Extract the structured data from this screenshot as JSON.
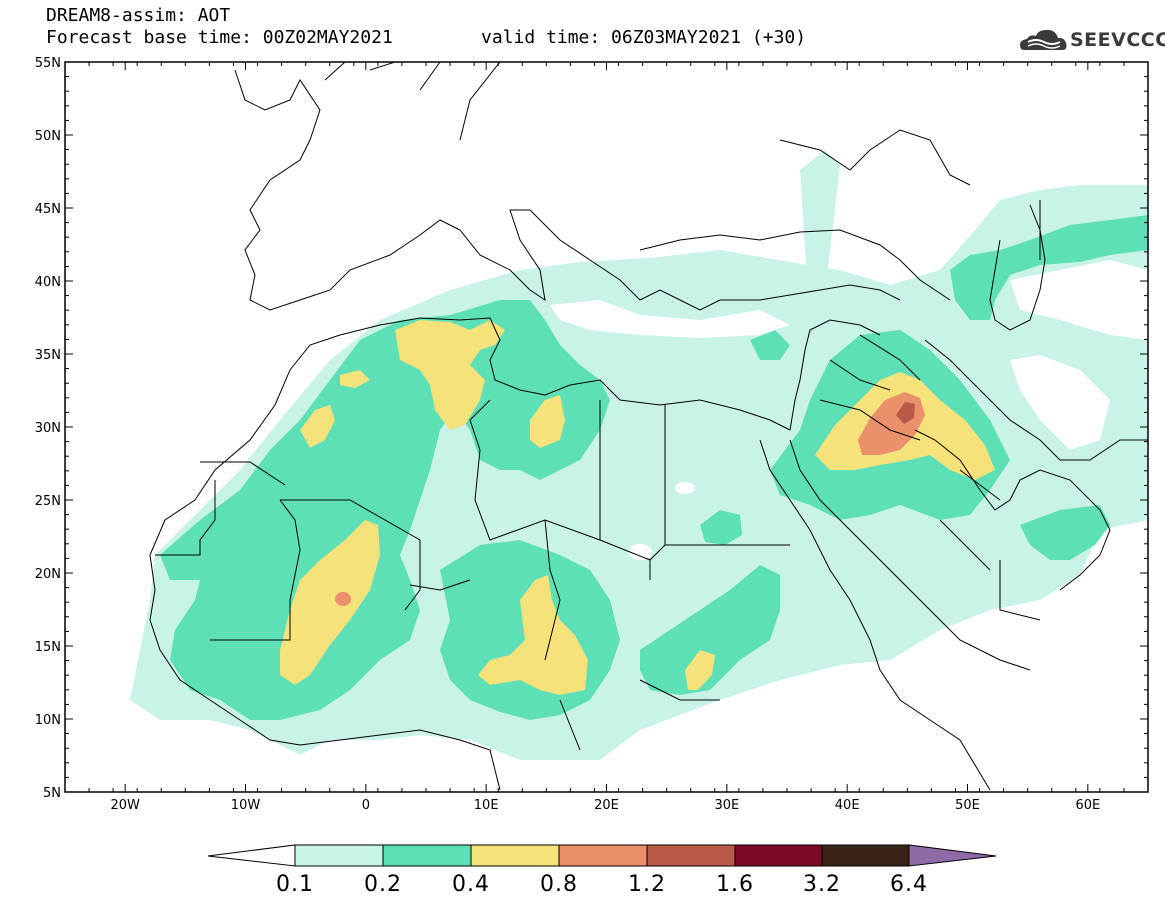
{
  "header": {
    "title": "DREAM8-assim: AOT",
    "base_time": "Forecast base time: 00Z02MAY2021",
    "valid_time": "valid time: 06Z03MAY2021 (+30)"
  },
  "logo": {
    "icon": "cloud-icon",
    "text": "SEEVCCC"
  },
  "axes": {
    "lat_labels": [
      "55N",
      "50N",
      "45N",
      "40N",
      "35N",
      "30N",
      "25N",
      "20N",
      "15N",
      "10N",
      "5N"
    ],
    "lon_labels": [
      "20W",
      "10W",
      "0",
      "10E",
      "20E",
      "30E",
      "40E",
      "50E",
      "60E"
    ],
    "lat_range": [
      5,
      55
    ],
    "lon_range": [
      -25,
      65
    ]
  },
  "colorbar": {
    "labels": [
      "0.1",
      "0.2",
      "0.4",
      "0.8",
      "1.2",
      "1.6",
      "3.2",
      "6.4"
    ],
    "colors": [
      "#ffffff",
      "#c9f3e9",
      "#5ddfb7",
      "#f6e27a",
      "#ea906a",
      "#b85a47",
      "#7b0a26",
      "#3a2418",
      "#8e6aa6"
    ]
  },
  "colors": {
    "c1": "#c9f3e9",
    "c2": "#5ddfb7",
    "c3": "#f6e27a",
    "c4": "#ea906a",
    "c5": "#b85a47"
  }
}
